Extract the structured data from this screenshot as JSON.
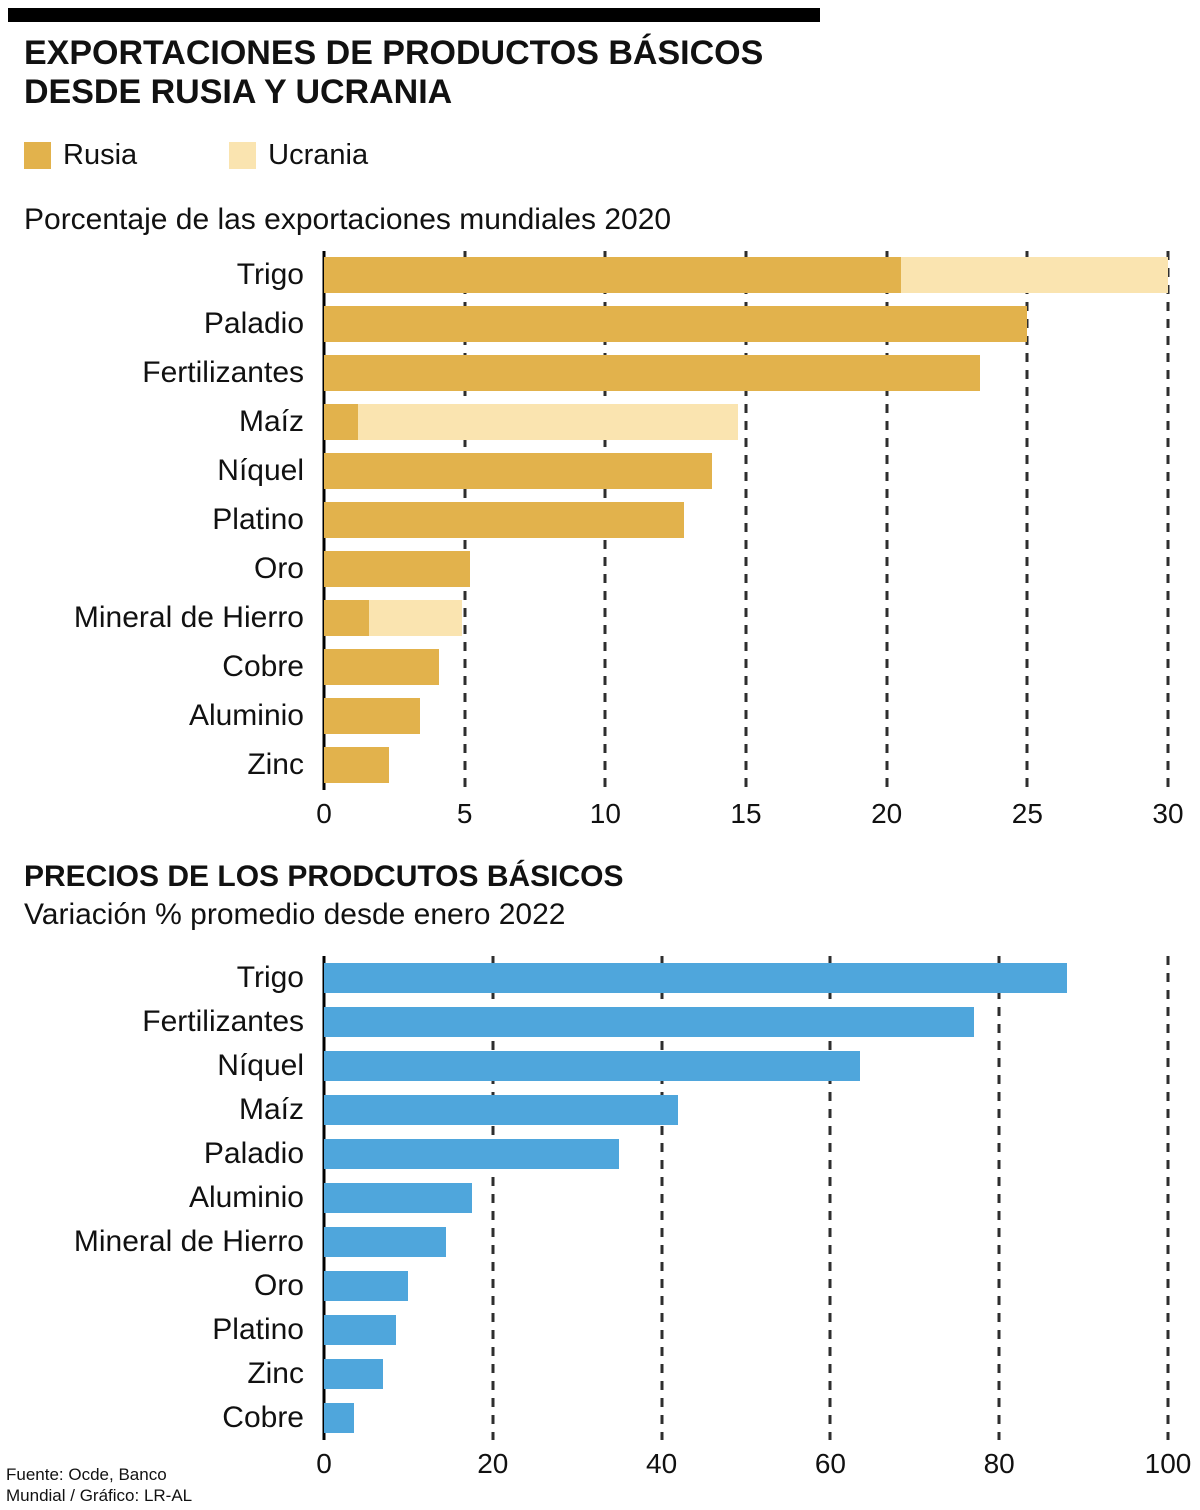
{
  "page": {
    "title_line1": "EXPORTACIONES DE PRODUCTOS BÁSICOS",
    "title_line2": "DESDE RUSIA Y UCRANIA",
    "source_line1": "Fuente: Ocde, Banco",
    "source_line2": "Mundial / Gráfico: LR-AL"
  },
  "legend": {
    "items": [
      {
        "label": "Rusia",
        "color": "#E2B24C"
      },
      {
        "label": "Ucrania",
        "color": "#FAE4B0"
      }
    ]
  },
  "colors": {
    "rusia": "#E2B24C",
    "ucrania": "#FAE4B0",
    "precios": "#4FA6DC",
    "axis": "#000000",
    "grid": "#2e2e2e"
  },
  "chart_data": [
    {
      "type": "bar",
      "orientation": "horizontal",
      "stacked": true,
      "title": "Porcentaje de las exportaciones mundiales 2020",
      "categories": [
        "Trigo",
        "Paladio",
        "Fertilizantes",
        "Maíz",
        "Níquel",
        "Platino",
        "Oro",
        "Mineral de Hierro",
        "Cobre",
        "Aluminio",
        "Zinc"
      ],
      "series": [
        {
          "name": "Rusia",
          "color": "#E2B24C",
          "values": [
            20.5,
            25,
            23.3,
            1.2,
            13.8,
            12.8,
            5.2,
            1.6,
            4.1,
            3.4,
            2.3
          ]
        },
        {
          "name": "Ucrania",
          "color": "#FAE4B0",
          "values": [
            9.5,
            0,
            0,
            13.5,
            0,
            0,
            0,
            3.3,
            0,
            0,
            0
          ]
        }
      ],
      "xlim": [
        0,
        30
      ],
      "xticks": [
        0,
        5,
        10,
        15,
        20,
        25,
        30
      ],
      "grid": "dashed-vertical",
      "legend_position": "top"
    },
    {
      "type": "bar",
      "orientation": "horizontal",
      "stacked": false,
      "title": "PRECIOS DE LOS PRODCUTOS BÁSICOS",
      "subtitle": "Variación % promedio desde enero 2022",
      "categories": [
        "Trigo",
        "Fertilizantes",
        "Níquel",
        "Maíz",
        "Paladio",
        "Aluminio",
        "Mineral de Hierro",
        "Oro",
        "Platino",
        "Zinc",
        "Cobre"
      ],
      "series": [
        {
          "name": "Variación %",
          "color": "#4FA6DC",
          "values": [
            88,
            77,
            63.5,
            42,
            35,
            17.5,
            14.5,
            10,
            8.5,
            7,
            3.5
          ]
        }
      ],
      "xlim": [
        0,
        100
      ],
      "xticks": [
        0,
        20,
        40,
        60,
        80,
        100
      ],
      "grid": "dashed-vertical",
      "legend_position": "none"
    }
  ]
}
